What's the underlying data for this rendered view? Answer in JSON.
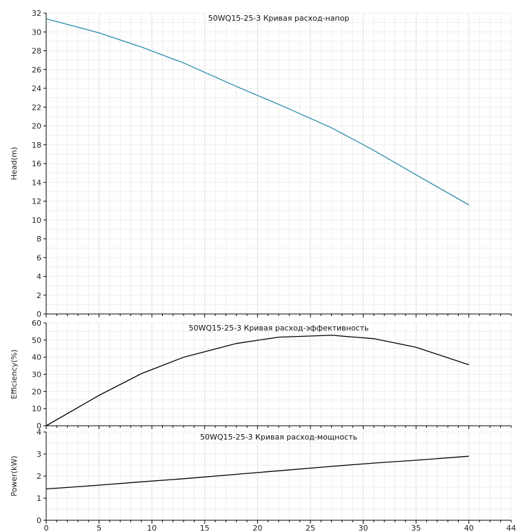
{
  "chart_data": [
    {
      "type": "line",
      "title": "50WQ15-25-3 Кривая расход-напор",
      "xlabel": "",
      "ylabel": "Head(m)",
      "xlim": [
        0,
        44
      ],
      "ylim": [
        0,
        32
      ],
      "yticks": [
        0,
        2,
        4,
        6,
        8,
        10,
        12,
        14,
        16,
        18,
        20,
        22,
        24,
        26,
        28,
        30,
        32
      ],
      "grid": true,
      "line_color": "#2a8aa8",
      "series": [
        {
          "x": [
            0,
            5,
            9,
            13,
            18,
            22,
            27,
            31,
            35,
            40
          ],
          "y": [
            31.4,
            29.9,
            28.4,
            26.7,
            24.2,
            22.3,
            19.8,
            17.4,
            14.8,
            11.6
          ]
        }
      ]
    },
    {
      "type": "line",
      "title": "50WQ15-25-3 Кривая расход-эффективность",
      "xlabel": "",
      "ylabel": "Efficiency(%)",
      "xlim": [
        0,
        44
      ],
      "ylim": [
        0,
        60
      ],
      "yticks": [
        0,
        10,
        20,
        30,
        40,
        50,
        60
      ],
      "grid": true,
      "line_color": "#000000",
      "series": [
        {
          "x": [
            0,
            5,
            9,
            13,
            18,
            22,
            27,
            31,
            35,
            40
          ],
          "y": [
            0,
            17.7,
            30.4,
            40.0,
            48.0,
            51.7,
            52.8,
            50.8,
            45.8,
            35.6
          ]
        }
      ]
    },
    {
      "type": "line",
      "title": "50WQ15-25-3 Кривая расход-мощность",
      "xlabel": "",
      "ylabel": "Power(kW)",
      "xlim": [
        0,
        44
      ],
      "ylim": [
        0,
        4
      ],
      "yticks": [
        0,
        1,
        2,
        3,
        4
      ],
      "xticks": [
        0,
        5,
        10,
        15,
        20,
        25,
        30,
        35,
        40,
        44
      ],
      "grid": true,
      "line_color": "#000000",
      "series": [
        {
          "x": [
            0,
            5,
            9,
            13,
            18,
            22,
            27,
            31,
            35,
            40
          ],
          "y": [
            1.42,
            1.59,
            1.74,
            1.88,
            2.08,
            2.24,
            2.44,
            2.59,
            2.72,
            2.9
          ]
        }
      ]
    }
  ]
}
